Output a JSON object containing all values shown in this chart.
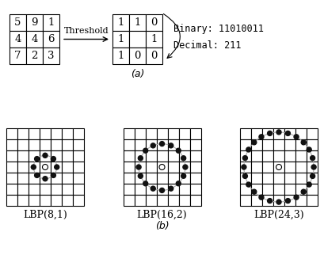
{
  "title_a": "(a)",
  "title_b": "(b)",
  "grid_a_values": [
    [
      5,
      9,
      1
    ],
    [
      4,
      4,
      6
    ],
    [
      7,
      2,
      3
    ]
  ],
  "grid_b_values": [
    [
      1,
      1,
      0
    ],
    [
      1,
      null,
      1
    ],
    [
      1,
      0,
      0
    ]
  ],
  "binary_text": "Binary: 11010011",
  "decimal_text": "Decimal: 211",
  "threshold_text": "Threshold",
  "lbp_configs": [
    {
      "P": 8,
      "R": 1.0,
      "grid_n": 7,
      "label": "LBP(8,1)"
    },
    {
      "P": 16,
      "R": 2.0,
      "grid_n": 7,
      "label": "LBP(16,2)"
    },
    {
      "P": 24,
      "R": 3.0,
      "grid_n": 7,
      "label": "LBP(24,3)"
    }
  ],
  "bg_color": "#ffffff",
  "dot_color": "#111111",
  "circle_color": "#aaaaaa",
  "fig_w": 409,
  "fig_h": 341
}
